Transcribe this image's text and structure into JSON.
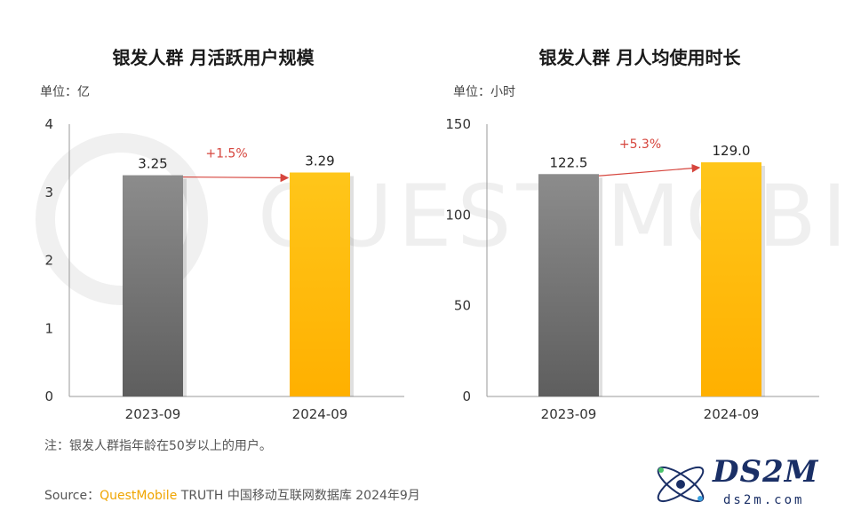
{
  "charts": [
    {
      "title": "银发人群 月活跃用户规模",
      "unit": "单位：亿",
      "chart_data": {
        "type": "bar",
        "categories": [
          "2023-09",
          "2024-09"
        ],
        "values": [
          3.25,
          3.29
        ],
        "data_labels": [
          "3.25",
          "3.29"
        ],
        "ylim": [
          0,
          4
        ],
        "yticks": [
          "0",
          "1",
          "2",
          "3",
          "4"
        ],
        "annotation": "+1.5%",
        "bar_colors": [
          "#7f7f7f",
          "#ffc000"
        ]
      }
    },
    {
      "title": "银发人群 月人均使用时长",
      "unit": "单位：小时",
      "chart_data": {
        "type": "bar",
        "categories": [
          "2023-09",
          "2024-09"
        ],
        "values": [
          122.5,
          129.0
        ],
        "data_labels": [
          "122.5",
          "129.0"
        ],
        "ylim": [
          0,
          150
        ],
        "yticks": [
          "0",
          "50",
          "100",
          "150"
        ],
        "annotation": "+5.3%",
        "bar_colors": [
          "#7f7f7f",
          "#ffc000"
        ]
      }
    }
  ],
  "note": "注：银发人群指年龄在50岁以上的用户。",
  "source": {
    "prefix": "Source：",
    "brand": "QuestMobile",
    "rest": " TRUTH 中国移动互联网数据库 2024年9月"
  },
  "watermark": "QUEST MOBILE",
  "logo": {
    "main": "DS2M",
    "sub": "ds2m.com"
  },
  "colors": {
    "growth": "#d6453d",
    "axis": "#999999"
  }
}
